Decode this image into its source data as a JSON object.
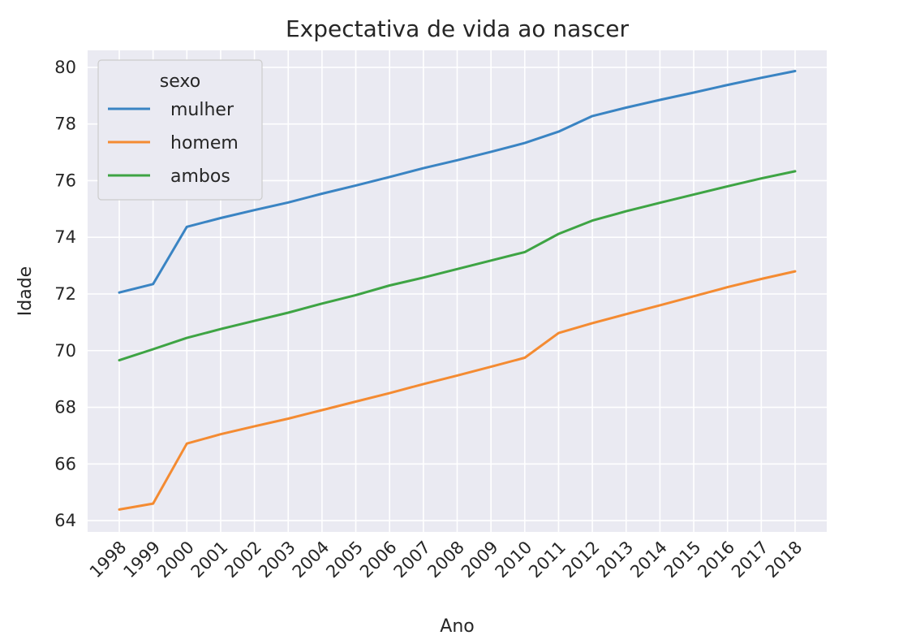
{
  "chart_data": {
    "type": "line",
    "title": "Expectativa de vida ao nascer",
    "xlabel": "Ano",
    "ylabel": "Idade",
    "x": [
      1998,
      1999,
      2000,
      2001,
      2002,
      2003,
      2004,
      2005,
      2006,
      2007,
      2008,
      2009,
      2010,
      2011,
      2012,
      2013,
      2014,
      2015,
      2016,
      2017,
      2018
    ],
    "x_tick_labels": [
      "1998",
      "1999",
      "2000",
      "2001",
      "2002",
      "2003",
      "2004",
      "2005",
      "2006",
      "2007",
      "2008",
      "2009",
      "2010",
      "2011",
      "2012",
      "2013",
      "2014",
      "2015",
      "2016",
      "2017",
      "2018"
    ],
    "ylim": [
      63.6,
      80.6
    ],
    "y_ticks": [
      64,
      66,
      68,
      70,
      72,
      74,
      76,
      78,
      80
    ],
    "y_tick_labels": [
      "64",
      "66",
      "68",
      "70",
      "72",
      "74",
      "76",
      "78",
      "80"
    ],
    "grid": true,
    "background": "#eaeaf2",
    "legend": {
      "title": "sexo",
      "placement": "top-left"
    },
    "series": [
      {
        "name": "mulher",
        "color": "#3a84c3",
        "values": [
          72.05,
          72.35,
          74.37,
          74.68,
          74.96,
          75.23,
          75.54,
          75.83,
          76.13,
          76.44,
          76.72,
          77.02,
          77.33,
          77.73,
          78.28,
          78.58,
          78.85,
          79.11,
          79.38,
          79.63,
          79.87
        ]
      },
      {
        "name": "homem",
        "color": "#f48b32",
        "values": [
          64.39,
          64.6,
          66.72,
          67.05,
          67.33,
          67.6,
          67.9,
          68.2,
          68.5,
          68.82,
          69.12,
          69.43,
          69.75,
          70.62,
          70.97,
          71.29,
          71.6,
          71.92,
          72.24,
          72.53,
          72.8
        ]
      },
      {
        "name": "ambos",
        "color": "#3ea444",
        "values": [
          69.66,
          70.05,
          70.45,
          70.76,
          71.05,
          71.34,
          71.66,
          71.96,
          72.3,
          72.58,
          72.88,
          73.18,
          73.48,
          74.12,
          74.59,
          74.92,
          75.22,
          75.51,
          75.8,
          76.08,
          76.33
        ]
      }
    ]
  }
}
